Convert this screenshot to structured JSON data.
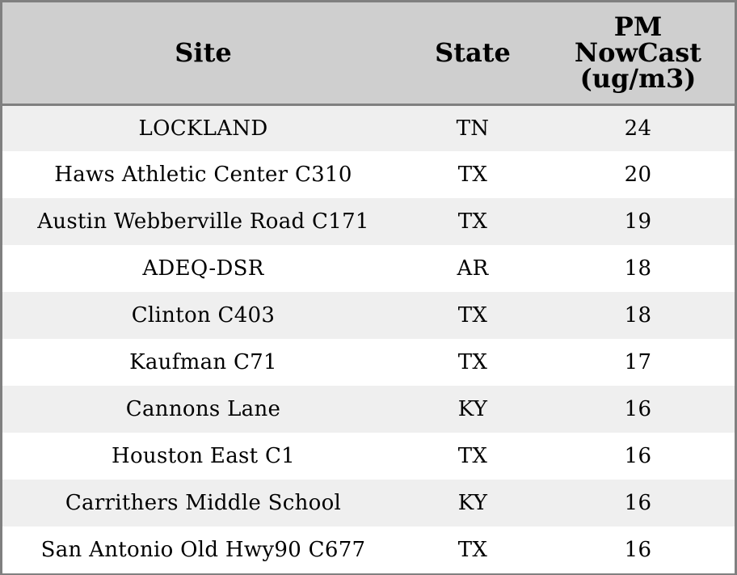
{
  "table": {
    "headers": {
      "site": "Site",
      "state": "State",
      "pm_lines": [
        "PM",
        "NowCast",
        "(ug/m3)"
      ]
    },
    "rows": [
      {
        "site": "LOCKLAND",
        "state": "TN",
        "pm": "24"
      },
      {
        "site": "Haws Athletic Center C310",
        "state": "TX",
        "pm": "20"
      },
      {
        "site": "Austin Webberville Road C171",
        "state": "TX",
        "pm": "19"
      },
      {
        "site": "ADEQ-DSR",
        "state": "AR",
        "pm": "18"
      },
      {
        "site": "Clinton C403",
        "state": "TX",
        "pm": "18"
      },
      {
        "site": "Kaufman C71",
        "state": "TX",
        "pm": "17"
      },
      {
        "site": "Cannons Lane",
        "state": "KY",
        "pm": "16"
      },
      {
        "site": "Houston East C1",
        "state": "TX",
        "pm": "16"
      },
      {
        "site": "Carrithers Middle School",
        "state": "KY",
        "pm": "16"
      },
      {
        "site": "San Antonio Old Hwy90 C677",
        "state": "TX",
        "pm": "16"
      }
    ],
    "colors": {
      "header_bg": "#cfcfcf",
      "row_alt_bg": "#efefef",
      "row_bg": "#ffffff",
      "border": "#808080"
    }
  }
}
